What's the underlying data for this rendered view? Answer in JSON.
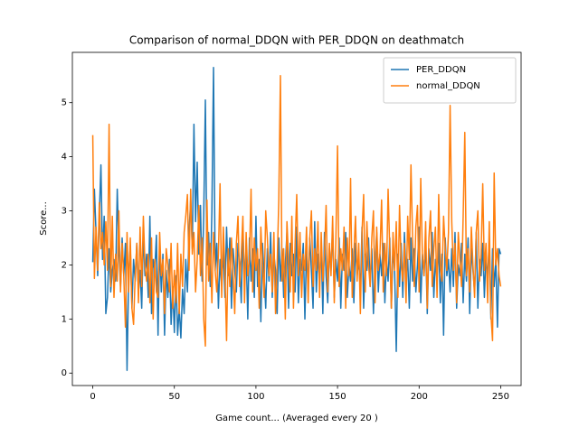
{
  "chart_data": {
    "type": "line",
    "title": "Comparison of normal_DDQN with PER_DDQN on deathmatch",
    "xlabel": "Game count... (Averaged every 20 )",
    "ylabel": "Score...",
    "x": [
      0,
      1,
      2,
      3,
      4,
      5,
      6,
      7,
      8,
      9,
      10,
      11,
      12,
      13,
      14,
      15,
      16,
      17,
      18,
      19,
      20,
      21,
      22,
      23,
      24,
      25,
      26,
      27,
      28,
      29,
      30,
      31,
      32,
      33,
      34,
      35,
      36,
      37,
      38,
      39,
      40,
      41,
      42,
      43,
      44,
      45,
      46,
      47,
      48,
      49,
      50,
      51,
      52,
      53,
      54,
      55,
      56,
      57,
      58,
      59,
      60,
      61,
      62,
      63,
      64,
      65,
      66,
      67,
      68,
      69,
      70,
      71,
      72,
      73,
      74,
      75,
      76,
      77,
      78,
      79,
      80,
      81,
      82,
      83,
      84,
      85,
      86,
      87,
      88,
      89,
      90,
      91,
      92,
      93,
      94,
      95,
      96,
      97,
      98,
      99,
      100,
      101,
      102,
      103,
      104,
      105,
      106,
      107,
      108,
      109,
      110,
      111,
      112,
      113,
      114,
      115,
      116,
      117,
      118,
      119,
      120,
      121,
      122,
      123,
      124,
      125,
      126,
      127,
      128,
      129,
      130,
      131,
      132,
      133,
      134,
      135,
      136,
      137,
      138,
      139,
      140,
      141,
      142,
      143,
      144,
      145,
      146,
      147,
      148,
      149,
      150,
      151,
      152,
      153,
      154,
      155,
      156,
      157,
      158,
      159,
      160,
      161,
      162,
      163,
      164,
      165,
      166,
      167,
      168,
      169,
      170,
      171,
      172,
      173,
      174,
      175,
      176,
      177,
      178,
      179,
      180,
      181,
      182,
      183,
      184,
      185,
      186,
      187,
      188,
      189,
      190,
      191,
      192,
      193,
      194,
      195,
      196,
      197,
      198,
      199,
      200,
      201,
      202,
      203,
      204,
      205,
      206,
      207,
      208,
      209,
      210,
      211,
      212,
      213,
      214,
      215,
      216,
      217,
      218,
      219,
      220,
      221,
      222,
      223,
      224,
      225,
      226,
      227,
      228,
      229,
      230,
      231,
      232,
      233,
      234,
      235,
      236,
      237,
      238,
      239,
      240,
      241,
      242,
      243,
      244,
      245,
      246,
      247,
      248,
      249,
      250
    ],
    "series": [
      {
        "name": "PER_DDQN",
        "color": "#1f77b4",
        "values": [
          2.05,
          3.4,
          2.6,
          1.8,
          2.9,
          3.85,
          2.1,
          2.9,
          1.1,
          1.4,
          2.3,
          1.5,
          1.9,
          2.1,
          1.7,
          3.4,
          2.3,
          1.6,
          2.5,
          1.8,
          2.4,
          0.05,
          1.8,
          2.35,
          1.2,
          2.1,
          1.7,
          2.4,
          1.5,
          1.9,
          1.2,
          2.6,
          1.8,
          2.2,
          1.4,
          2.9,
          1.1,
          2.1,
          1.9,
          2.55,
          0.7,
          2.4,
          1.5,
          2.2,
          0.7,
          1.9,
          1.4,
          2.1,
          0.9,
          1.6,
          0.75,
          1.8,
          0.7,
          1.2,
          0.65,
          1.55,
          1.1,
          2.1,
          1.5,
          2.6,
          3.2,
          2.3,
          4.6,
          2.8,
          3.9,
          2.2,
          3.1,
          1.7,
          2.9,
          5.05,
          2.0,
          2.6,
          1.6,
          3.0,
          5.65,
          1.9,
          2.4,
          1.2,
          2.1,
          1.6,
          2.3,
          1.4,
          2.7,
          1.8,
          2.5,
          1.2,
          2.3,
          1.9,
          1.5,
          2.4,
          2.0,
          1.3,
          2.6,
          1.8,
          2.2,
          1.0,
          2.5,
          1.7,
          2.3,
          1.4,
          2.9,
          1.6,
          2.1,
          0.95,
          2.4,
          1.8,
          1.2,
          2.3,
          1.7,
          2.6,
          1.4,
          2.2,
          1.9,
          1.1,
          2.5,
          1.7,
          2.3,
          1.4,
          2.0,
          2.6,
          1.2,
          2.4,
          1.8,
          2.2,
          1.5,
          2.7,
          1.3,
          2.1,
          1.9,
          2.4,
          1.0,
          2.3,
          1.6,
          2.5,
          1.9,
          1.2,
          2.8,
          1.5,
          2.2,
          1.7,
          2.4,
          1.1,
          2.6,
          1.8,
          1.3,
          2.3,
          1.9,
          2.7,
          1.4,
          2.1,
          1.7,
          2.5,
          1.2,
          2.2,
          1.9,
          2.6,
          1.4,
          2.0,
          1.7,
          2.3,
          1.3,
          2.4,
          1.8,
          2.1,
          1.5,
          2.7,
          1.2,
          2.2,
          1.9,
          2.5,
          1.6,
          2.3,
          1.1,
          2.0,
          2.6,
          1.5,
          2.2,
          1.8,
          2.4,
          1.3,
          2.1,
          1.7,
          2.5,
          1.2,
          2.3,
          1.9,
          0.4,
          2.2,
          1.6,
          2.4,
          1.4,
          2.6,
          1.8,
          2.1,
          1.2,
          2.5,
          1.7,
          2.3,
          1.5,
          2.0,
          2.7,
          1.3,
          2.2,
          1.8,
          2.4,
          1.1,
          2.3,
          1.9,
          2.6,
          1.4,
          2.1,
          1.7,
          2.4,
          1.3,
          2.2,
          0.7,
          2.5,
          1.8,
          2.1,
          1.5,
          2.3,
          1.6,
          2.6,
          1.2,
          2.0,
          1.8,
          2.4,
          1.3,
          2.2,
          1.7,
          2.5,
          1.1,
          2.3,
          1.9,
          1.5,
          2.6,
          1.2,
          2.1,
          1.8,
          2.4,
          1.4,
          2.2,
          1.7,
          2.5,
          1.0,
          2.3,
          1.6,
          2.1,
          0.85,
          2.3,
          2.2
        ]
      },
      {
        "name": "normal_DDQN",
        "color": "#ff7f0e",
        "values": [
          4.4,
          1.75,
          2.7,
          1.9,
          3.15,
          2.3,
          2.6,
          2.0,
          2.8,
          1.9,
          4.6,
          1.6,
          2.9,
          1.4,
          2.2,
          1.7,
          3.0,
          1.5,
          2.4,
          1.8,
          0.85,
          2.6,
          1.5,
          2.5,
          1.2,
          0.9,
          1.8,
          2.4,
          1.3,
          2.7,
          1.6,
          2.9,
          2.0,
          1.7,
          2.2,
          1.3,
          2.5,
          1.0,
          2.1,
          1.5,
          1.4,
          2.6,
          1.8,
          2.1,
          1.1,
          2.3,
          2.0,
          1.5,
          2.4,
          1.2,
          1.9,
          1.3,
          2.4,
          1.1,
          2.2,
          1.6,
          2.6,
          2.9,
          3.3,
          1.9,
          3.4,
          2.2,
          2.6,
          1.5,
          2.1,
          3.1,
          1.8,
          2.5,
          1.0,
          0.5,
          3.2,
          1.7,
          2.4,
          1.3,
          2.6,
          1.9,
          1.5,
          2.2,
          3.5,
          1.4,
          2.7,
          1.9,
          0.6,
          2.3,
          1.6,
          2.5,
          1.8,
          1.1,
          2.4,
          2.9,
          1.6,
          2.2,
          2.9,
          1.3,
          2.6,
          1.8,
          2.1,
          3.4,
          1.5,
          2.5,
          1.9,
          2.3,
          1.2,
          2.7,
          2.0,
          1.4,
          3.0,
          2.5,
          1.8,
          2.2,
          1.5,
          2.6,
          1.1,
          2.0,
          3.2,
          5.5,
          1.7,
          2.3,
          1.0,
          2.8,
          2.1,
          1.5,
          2.9,
          1.2,
          2.4,
          3.3,
          1.8,
          2.6,
          1.4,
          2.2,
          1.9,
          2.7,
          1.3,
          2.5,
          3.0,
          1.6,
          2.3,
          1.9,
          2.8,
          1.4,
          2.6,
          1.7,
          2.2,
          3.1,
          1.5,
          2.4,
          1.8,
          2.9,
          1.3,
          2.5,
          4.2,
          1.6,
          2.3,
          1.9,
          2.7,
          1.2,
          2.5,
          1.8,
          3.6,
          1.4,
          2.2,
          2.9,
          1.7,
          2.4,
          1.1,
          2.6,
          3.3,
          1.5,
          2.8,
          2.0,
          1.6,
          2.5,
          3.0,
          1.3,
          2.7,
          1.9,
          2.2,
          3.2,
          1.5,
          2.4,
          1.8,
          3.4,
          2.3,
          1.2,
          2.6,
          1.9,
          2.8,
          1.4,
          3.1,
          2.0,
          1.7,
          2.4,
          1.3,
          2.9,
          2.1,
          3.85,
          2.5,
          1.6,
          2.7,
          3.1,
          1.5,
          3.6,
          2.2,
          1.8,
          2.8,
          1.2,
          2.5,
          3.0,
          1.6,
          2.3,
          2.7,
          1.4,
          3.3,
          2.0,
          1.7,
          2.9,
          2.3,
          1.9,
          2.6,
          4.95,
          2.8,
          1.9,
          2.4,
          1.3,
          2.6,
          2.1,
          1.6,
          2.9,
          4.45,
          1.8,
          2.3,
          1.5,
          2.7,
          2.0,
          1.4,
          2.6,
          3.0,
          1.7,
          2.2,
          3.5,
          1.9,
          2.4,
          1.3,
          2.8,
          1.1,
          0.6,
          3.7,
          2.0,
          2.3,
          1.8,
          1.6
        ]
      }
    ],
    "xlim": [
      -12.5,
      262.5
    ],
    "xticks": [
      0,
      50,
      100,
      150,
      200,
      250
    ],
    "ylim": [
      -0.23,
      5.93
    ],
    "yticks": [
      0,
      1,
      2,
      3,
      4,
      5
    ],
    "legend": "upper right"
  }
}
